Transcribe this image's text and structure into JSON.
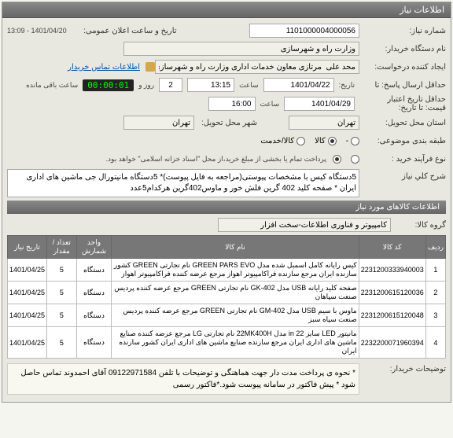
{
  "panel_title": "اطلاعات نیاز",
  "fields": {
    "need_no_label": "شماره نیاز:",
    "need_no": "1101000004000056",
    "announce_label": "تاریخ و ساعت اعلان عمومی:",
    "announce_value": "1401/04/20 - 13:09",
    "org_label": "نام دستگاه خریدار:",
    "org_value": "وزارت راه و شهرسازی",
    "creator_label": "ایجاد کننده درخواست:",
    "creator_value": "محد علی  مرتازی معاون خدمات اداری وزارت راه و شهرسازی",
    "contact_label": "اطلاعات تماس خریدار",
    "deadline_send_label": "حداقل ارسال پاسخ: تا",
    "deadline_date_label": "تاریخ:",
    "deadline_date": "1401/04/22",
    "time_label": "ساعت",
    "deadline_time": "13:15",
    "day_and": "روز و",
    "days_remain": "2",
    "timer": "00:00:01",
    "remain_txt": "ساعت باقی مانده",
    "credit_label": "حداقل تاریخ اعتبار",
    "credit_sub": "قیمت: تا تاریخ:",
    "credit_date": "1401/04/29",
    "credit_time": "16:00",
    "province_label": "استان محل تحویل:",
    "province": "تهران",
    "city_label": "شهر محل تحویل:",
    "city": "تهران",
    "class_label": "طبقه بندی موضوعی:",
    "class_cash": "کالا",
    "class_service": "کالا/خدمت",
    "class_other": "-",
    "process_label": "نوع فرآیند خرید :",
    "process_note": "پرداخت تمام یا بخشی از مبلغ خرید،از محل \"اسناد خزانه اسلامی\" خواهد بود.",
    "desc_label": "شرح کلي نياز",
    "desc_text": "5دستگاه کیس با مشخصات پیوستی(مراجعه به فایل پیوست)*  5دستگاه مانیتورال جی ماشین های اداری ایران * صفحه کلید 402 گرین فلش خور و ماوس402گرین هرکدام5عدد",
    "items_header": "اطلاعات کالاهای مورد نیاز",
    "group_label": "گروه کالا:",
    "group_value": "کامپیوتر و فناوری اطلاعات-سخت افزار",
    "buyer_note_label": "توضیحات خریدار:",
    "buyer_note": "* نحوه ی پرداخت مدت دار جهت هماهنگی و توضیحات با تلفن 09122971584 آقای احمدوند تماس حاصل شود *  پیش فاکتور در سامانه پیوست شود.*فاکتور رسمی"
  },
  "table": {
    "headers": [
      "ردیف",
      "کد کالا",
      "نام کالا",
      "واحد شمارش",
      "تعداد / مقدار",
      "تاریخ نیاز"
    ],
    "rows": [
      [
        "1",
        "2231200333940003",
        "کیس رایانه کامل اسمبل شده مدل GREEN PARS EVO نام تجارتی GREEN کشور سازنده ایران مرجع سازنده فراکامپیوتر اهواز مرجع عرضه کننده فراکامپیوتر اهواز",
        "دستگاه",
        "5",
        "1401/04/25"
      ],
      [
        "2",
        "2231200615120036",
        "صفحه کلید رایانه USB مدل GK-402 نام تجارتی GREEN مرجع عرضه کننده پردیس صنعت سپاهان",
        "دستگاه",
        "5",
        "1401/04/25"
      ],
      [
        "3",
        "2231200615120048",
        "ماوس با سیم USB مدل GM-402 نام تجارتی GREEN مرجع عرضه کننده پردیس صنعت سپاه سبز",
        "دستگاه",
        "5",
        "1401/04/25"
      ],
      [
        "4",
        "2232200071960394",
        "مانیتور LED سایز 22 in مدل 22MK400H نام تجارتی LG مرجع عرضه کننده صنایع ماشین های اداری ایران مرجع سازنده صنایع ماشین های اداری ایران کشور سازنده ایران",
        "دستگاه",
        "5",
        "1401/04/25"
      ]
    ]
  }
}
